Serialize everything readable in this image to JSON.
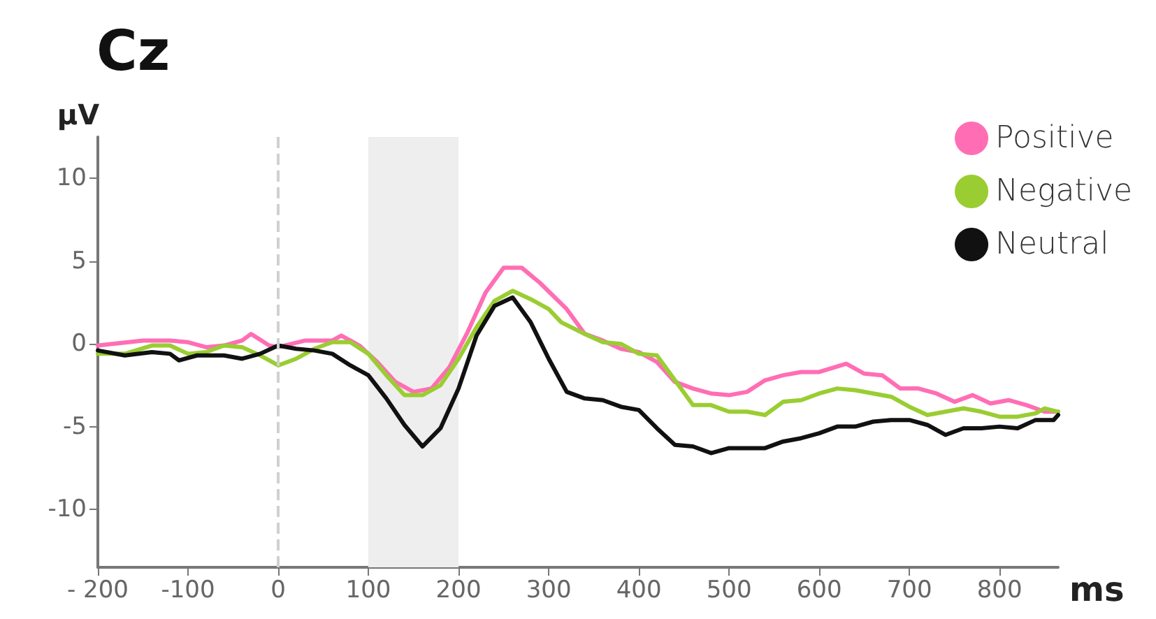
{
  "chart_data": {
    "type": "line",
    "title": "Cz",
    "ylabel": "μV",
    "xlabel": "ms",
    "xlim": [
      -200,
      865
    ],
    "ylim": [
      -13.5,
      12.5
    ],
    "xticks": [
      {
        "value": -200,
        "label": "- 200"
      },
      -100,
      0,
      100,
      200,
      300,
      400,
      500,
      600,
      700,
      800
    ],
    "yticks": [
      -10,
      -5,
      0,
      5,
      10
    ],
    "grid": false,
    "legend": "top right",
    "marker": "none",
    "line_style": "solid",
    "bands": [
      {
        "axis": "x",
        "from": 100,
        "to": 200,
        "color": "#eeeeee"
      }
    ],
    "ref_lines": [
      {
        "axis": "x",
        "value": 0,
        "color": "#d0d0d0",
        "line_style": "dashed"
      }
    ],
    "series": [
      {
        "name": "Positive",
        "color": "#ff6eb4",
        "x": [
          -200,
          -150,
          -120,
          -100,
          -80,
          -60,
          -40,
          -30,
          -10,
          0,
          30,
          60,
          70,
          90,
          110,
          130,
          150,
          170,
          190,
          210,
          230,
          250,
          270,
          290,
          320,
          340,
          360,
          380,
          400,
          420,
          440,
          460,
          480,
          500,
          520,
          540,
          560,
          580,
          600,
          630,
          650,
          670,
          690,
          710,
          730,
          750,
          770,
          790,
          810,
          830,
          850,
          865
        ],
        "values": [
          -0.1,
          0.2,
          0.2,
          0.1,
          -0.2,
          -0.1,
          0.2,
          0.6,
          -0.1,
          -0.2,
          0.2,
          0.2,
          0.5,
          -0.1,
          -1.1,
          -2.3,
          -2.9,
          -2.7,
          -1.4,
          0.7,
          3.1,
          4.6,
          4.6,
          3.7,
          2.1,
          0.6,
          0.2,
          -0.3,
          -0.5,
          -1.1,
          -2.3,
          -2.7,
          -3.0,
          -3.1,
          -2.9,
          -2.2,
          -1.9,
          -1.7,
          -1.7,
          -1.2,
          -1.8,
          -1.9,
          -2.7,
          -2.7,
          -3.0,
          -3.5,
          -3.1,
          -3.6,
          -3.4,
          -3.7,
          -4.1,
          -4.1
        ]
      },
      {
        "name": "Negative",
        "color": "#9acd32",
        "x": [
          -200,
          -170,
          -140,
          -120,
          -100,
          -80,
          -60,
          -40,
          -20,
          0,
          20,
          40,
          60,
          80,
          100,
          120,
          140,
          160,
          180,
          200,
          220,
          240,
          260,
          280,
          300,
          314,
          340,
          360,
          380,
          400,
          420,
          440,
          460,
          480,
          500,
          520,
          540,
          560,
          580,
          600,
          620,
          640,
          660,
          680,
          700,
          720,
          740,
          760,
          780,
          800,
          820,
          840,
          850,
          865
        ],
        "values": [
          -0.6,
          -0.6,
          -0.1,
          -0.1,
          -0.6,
          -0.5,
          -0.1,
          -0.2,
          -0.7,
          -1.3,
          -0.9,
          -0.3,
          0.1,
          0.1,
          -0.6,
          -1.9,
          -3.1,
          -3.1,
          -2.5,
          -0.9,
          1.0,
          2.6,
          3.2,
          2.7,
          2.1,
          1.3,
          0.6,
          0.1,
          0.0,
          -0.6,
          -0.7,
          -2.2,
          -3.7,
          -3.7,
          -4.1,
          -4.1,
          -4.3,
          -3.5,
          -3.4,
          -3.0,
          -2.7,
          -2.8,
          -3.0,
          -3.2,
          -3.8,
          -4.3,
          -4.1,
          -3.9,
          -4.1,
          -4.4,
          -4.4,
          -4.2,
          -3.9,
          -4.1
        ]
      },
      {
        "name": "Neutral",
        "color": "#111111",
        "x": [
          -200,
          -170,
          -140,
          -120,
          -110,
          -90,
          -60,
          -40,
          -20,
          0,
          20,
          40,
          60,
          80,
          100,
          120,
          140,
          160,
          180,
          200,
          220,
          240,
          260,
          280,
          300,
          320,
          340,
          360,
          380,
          400,
          420,
          440,
          460,
          480,
          500,
          520,
          540,
          560,
          580,
          600,
          620,
          640,
          660,
          680,
          700,
          720,
          740,
          760,
          780,
          800,
          820,
          840,
          860,
          865
        ],
        "values": [
          -0.4,
          -0.7,
          -0.5,
          -0.6,
          -1.0,
          -0.7,
          -0.7,
          -0.9,
          -0.6,
          -0.1,
          -0.3,
          -0.4,
          -0.6,
          -1.3,
          -1.9,
          -3.3,
          -4.9,
          -6.2,
          -5.1,
          -2.7,
          0.5,
          2.3,
          2.8,
          1.3,
          -0.9,
          -2.9,
          -3.3,
          -3.4,
          -3.8,
          -4.0,
          -5.1,
          -6.1,
          -6.2,
          -6.6,
          -6.3,
          -6.3,
          -6.3,
          -5.9,
          -5.7,
          -5.4,
          -5.0,
          -5.0,
          -4.7,
          -4.6,
          -4.6,
          -4.9,
          -5.5,
          -5.1,
          -5.1,
          -5.0,
          -5.1,
          -4.6,
          -4.6,
          -4.3
        ]
      }
    ]
  }
}
